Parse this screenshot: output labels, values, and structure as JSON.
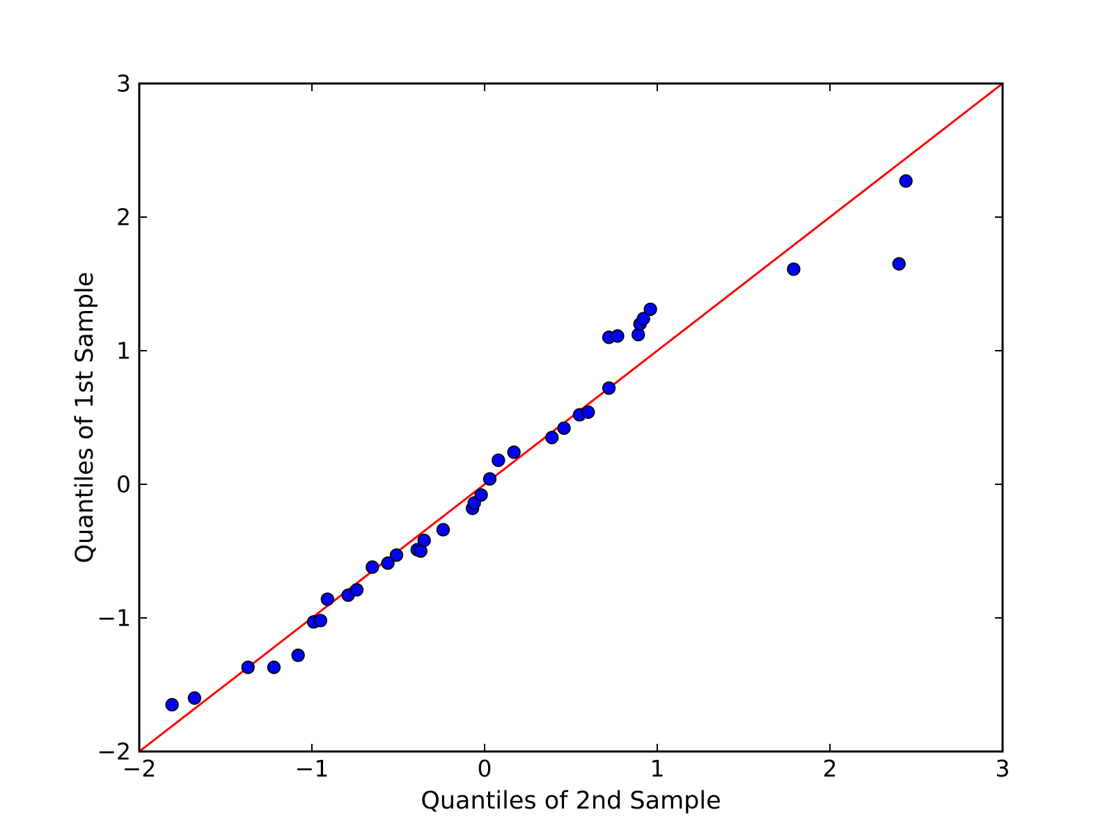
{
  "chart_data": {
    "type": "scatter",
    "title": "",
    "xlabel": "Quantiles of 2nd Sample",
    "ylabel": "Quantiles of 1st Sample",
    "xlim": [
      -2,
      3
    ],
    "ylim": [
      -2,
      3
    ],
    "x_tick_values": [
      -2,
      -1,
      0,
      1,
      2,
      3
    ],
    "x_tick_labels": [
      "−2",
      "−1",
      "0",
      "1",
      "2",
      "3"
    ],
    "y_tick_values": [
      -2,
      -1,
      0,
      1,
      2,
      3
    ],
    "y_tick_labels": [
      "−2",
      "−1",
      "0",
      "1",
      "2",
      "3"
    ],
    "grid": false,
    "legend": null,
    "tick_direction": "in",
    "ticks_all_sides": true,
    "axis_color": "#000000",
    "background_color": "#ffffff",
    "series": [
      {
        "name": "identity-line",
        "type": "line",
        "color": "#ff0000",
        "points": [
          [
            -2,
            -2
          ],
          [
            3,
            3
          ]
        ]
      },
      {
        "name": "sample-quantiles",
        "type": "scatter",
        "marker": "circle",
        "color": "#0000ff",
        "edge_color": "#000000",
        "points": [
          [
            -1.81,
            -1.65
          ],
          [
            -1.68,
            -1.6
          ],
          [
            -1.37,
            -1.37
          ],
          [
            -1.22,
            -1.37
          ],
          [
            -1.08,
            -1.28
          ],
          [
            -0.99,
            -1.03
          ],
          [
            -0.95,
            -1.02
          ],
          [
            -0.91,
            -0.86
          ],
          [
            -0.79,
            -0.83
          ],
          [
            -0.74,
            -0.79
          ],
          [
            -0.65,
            -0.62
          ],
          [
            -0.56,
            -0.59
          ],
          [
            -0.51,
            -0.53
          ],
          [
            -0.39,
            -0.49
          ],
          [
            -0.37,
            -0.5
          ],
          [
            -0.35,
            -0.42
          ],
          [
            -0.24,
            -0.34
          ],
          [
            -0.07,
            -0.18
          ],
          [
            -0.06,
            -0.14
          ],
          [
            -0.02,
            -0.08
          ],
          [
            0.03,
            0.04
          ],
          [
            0.08,
            0.18
          ],
          [
            0.17,
            0.24
          ],
          [
            0.39,
            0.35
          ],
          [
            0.46,
            0.42
          ],
          [
            0.55,
            0.52
          ],
          [
            0.6,
            0.54
          ],
          [
            0.72,
            0.72
          ],
          [
            0.72,
            1.1
          ],
          [
            0.77,
            1.11
          ],
          [
            0.89,
            1.12
          ],
          [
            0.9,
            1.2
          ],
          [
            0.92,
            1.24
          ],
          [
            0.96,
            1.31
          ],
          [
            1.79,
            1.61
          ],
          [
            2.4,
            1.65
          ],
          [
            2.44,
            2.27
          ]
        ]
      }
    ]
  }
}
